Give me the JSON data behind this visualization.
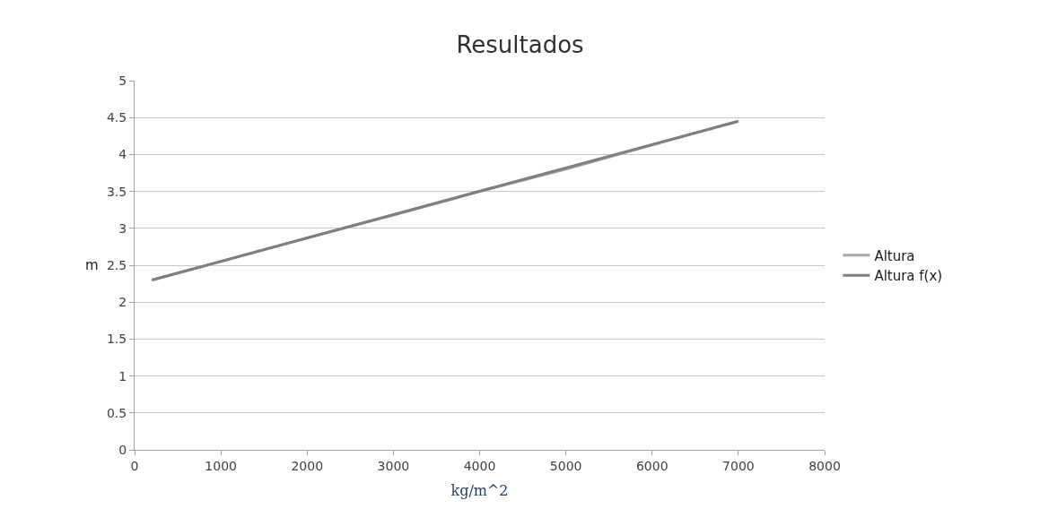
{
  "chart_data": {
    "type": "line",
    "title": "Resultados",
    "xlabel": "kg/m^2",
    "ylabel": "m",
    "xlim": [
      0,
      8000
    ],
    "xticks": [
      0,
      1000,
      2000,
      3000,
      4000,
      5000,
      6000,
      7000,
      8000
    ],
    "ylim": [
      0,
      5
    ],
    "yticks": [
      0,
      0.5,
      1,
      1.5,
      2,
      2.5,
      3,
      3.5,
      4,
      4.5,
      5
    ],
    "grid": "y",
    "legend": "right",
    "marker": "none",
    "line_style": "solid",
    "series": [
      {
        "name": "Altura",
        "color": "#a6a6a6",
        "x": [
          200,
          1000,
          2000,
          3000,
          4000,
          5000,
          6000,
          7000
        ],
        "values": [
          2.3,
          2.55,
          2.87,
          3.18,
          3.5,
          3.8,
          4.13,
          4.45
        ]
      },
      {
        "name": "Altura f(x)",
        "color": "#7f7f7f",
        "x": [
          200,
          7000
        ],
        "values": [
          2.3,
          4.45
        ]
      }
    ]
  }
}
